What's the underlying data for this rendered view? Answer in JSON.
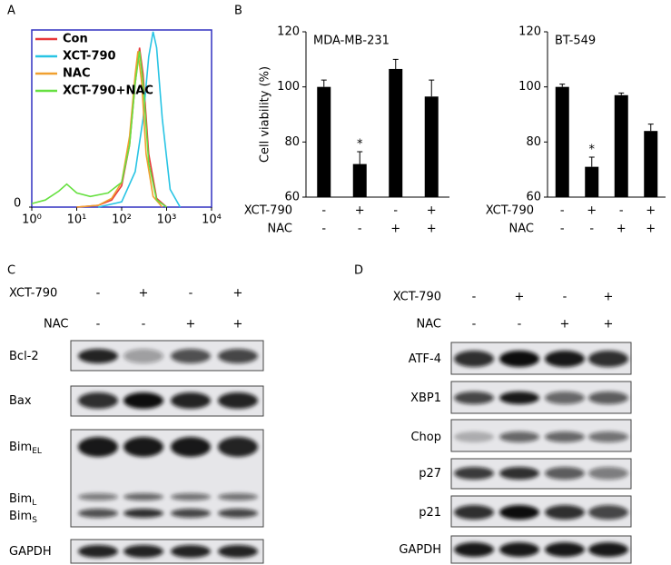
{
  "panel_labels": [
    "A",
    "B",
    "C",
    "D"
  ],
  "chart_data": [
    {
      "type": "line",
      "xscale": "log",
      "xlim": [
        1,
        10000
      ],
      "xticks": [
        {
          "value": 1,
          "label": "10⁰"
        },
        {
          "value": 10,
          "label": "10¹"
        },
        {
          "value": 100,
          "label": "10²"
        },
        {
          "value": 1000,
          "label": "10³"
        },
        {
          "value": 10000,
          "label": "10⁴"
        }
      ],
      "ylim": [
        0,
        100
      ],
      "yticks": [
        0
      ],
      "legend": "upper left",
      "series": [
        {
          "name": "Con",
          "color": "#e8383a",
          "x": [
            10,
            30,
            60,
            100,
            150,
            200,
            250,
            300,
            400,
            600,
            1000
          ],
          "values": [
            0,
            1,
            4,
            12,
            35,
            70,
            90,
            75,
            30,
            5,
            0
          ]
        },
        {
          "name": "XCT-790",
          "color": "#28c4e4",
          "x": [
            30,
            100,
            200,
            300,
            400,
            500,
            600,
            800,
            1200,
            2000
          ],
          "values": [
            0,
            3,
            20,
            50,
            85,
            99,
            90,
            50,
            10,
            0
          ]
        },
        {
          "name": "NAC",
          "color": "#f0a030",
          "x": [
            10,
            30,
            60,
            100,
            150,
            200,
            230,
            280,
            350,
            500,
            800
          ],
          "values": [
            0,
            1,
            5,
            14,
            40,
            75,
            88,
            70,
            30,
            6,
            0
          ]
        },
        {
          "name": "XCT-790+NAC",
          "color": "#66e040",
          "x": [
            1,
            2,
            4,
            6,
            10,
            20,
            50,
            100,
            150,
            200,
            250,
            300,
            400,
            600,
            1000
          ],
          "values": [
            2,
            4,
            9,
            13,
            8,
            6,
            8,
            14,
            35,
            70,
            88,
            70,
            25,
            4,
            0
          ]
        }
      ]
    },
    {
      "type": "bar",
      "title": "MDA-MB-231",
      "y_label": "Cell viability (%)",
      "categories": [
        null,
        null,
        null,
        null
      ],
      "values": [
        100,
        72,
        106.5,
        96.5
      ],
      "errors": [
        2.5,
        4.5,
        3.5,
        6
      ],
      "color": "#000000",
      "ylim": [
        60,
        120
      ],
      "yticks": [
        60,
        80,
        100,
        120
      ],
      "annotation": "*",
      "treatments": [
        {
          "name": "XCT-790",
          "signs": [
            "-",
            "+",
            "-",
            "+"
          ]
        },
        {
          "name": "NAC",
          "signs": [
            "-",
            "-",
            "+",
            "+"
          ]
        }
      ]
    },
    {
      "type": "bar",
      "title": "BT-549",
      "categories": [
        null,
        null,
        null,
        null
      ],
      "values": [
        100,
        71,
        97,
        84
      ],
      "errors": [
        1,
        3.5,
        0.8,
        2.5
      ],
      "color": "#000000",
      "ylim": [
        60,
        120
      ],
      "yticks": [
        60,
        80,
        100,
        120
      ],
      "annotation": "*",
      "treatments": [
        {
          "name": "XCT-790",
          "signs": [
            "-",
            "+",
            "-",
            "+"
          ]
        },
        {
          "name": "NAC",
          "signs": [
            "-",
            "-",
            "+",
            "+"
          ]
        }
      ]
    }
  ],
  "blots": [
    {
      "treatments": [
        {
          "name": "XCT-790",
          "signs": [
            "-",
            "+",
            "-",
            "+"
          ]
        },
        {
          "name": "NAC",
          "signs": [
            "-",
            "-",
            "+",
            "+"
          ]
        }
      ],
      "boxes": [
        {
          "labels": [
            {
              "text": "Bcl-2"
            }
          ]
        },
        {
          "labels": [
            {
              "text": "Bax"
            }
          ]
        },
        {
          "labels": [
            {
              "text": "Bim",
              "sub": "EL"
            },
            {
              "text": "Bim",
              "sub": "L"
            },
            {
              "text": "Bim",
              "sub": "S"
            }
          ]
        },
        {
          "labels": [
            {
              "text": "GAPDH"
            }
          ]
        }
      ]
    },
    {
      "treatments": [
        {
          "name": "XCT-790",
          "signs": [
            "-",
            "+",
            "-",
            "+"
          ]
        },
        {
          "name": "NAC",
          "signs": [
            "-",
            "-",
            "+",
            "+"
          ]
        }
      ],
      "boxes": [
        {
          "labels": [
            {
              "text": "ATF-4"
            }
          ]
        },
        {
          "labels": [
            {
              "text": "XBP1"
            }
          ]
        },
        {
          "labels": [
            {
              "text": "Chop"
            }
          ]
        },
        {
          "labels": [
            {
              "text": "p27"
            }
          ]
        },
        {
          "labels": [
            {
              "text": "p21"
            }
          ]
        },
        {
          "labels": [
            {
              "text": "GAPDH"
            }
          ]
        }
      ]
    }
  ]
}
